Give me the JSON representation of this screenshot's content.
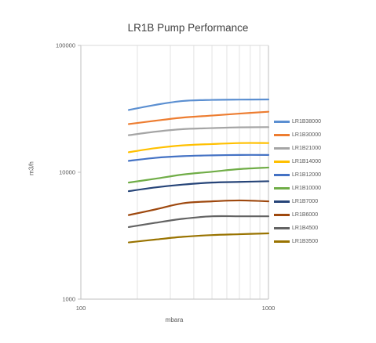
{
  "chart_data": {
    "type": "line",
    "title": "LR1B Pump Performance",
    "xlabel": "mbara",
    "ylabel": "m3/h",
    "x_scale": "log",
    "y_scale": "log",
    "xlim": [
      100,
      1000
    ],
    "ylim": [
      1000,
      100000
    ],
    "x_ticks": [
      "100",
      "1000"
    ],
    "y_ticks": [
      "1000",
      "10000",
      "100000"
    ],
    "grid": "vertical-minor",
    "legend_position": "right",
    "x": [
      180,
      250,
      350,
      500,
      700,
      1000
    ],
    "series": [
      {
        "name": "LR1B38000",
        "color": "#5b8fd1",
        "values": [
          31000,
          34000,
          36500,
          37200,
          37400,
          37500
        ]
      },
      {
        "name": "LR1B30000",
        "color": "#ed7d31",
        "values": [
          24000,
          25500,
          27000,
          28000,
          29000,
          30000
        ]
      },
      {
        "name": "LR1B21000",
        "color": "#a5a5a5",
        "values": [
          19600,
          20900,
          21900,
          22300,
          22600,
          22700
        ]
      },
      {
        "name": "LR1B14000",
        "color": "#ffc000",
        "values": [
          14400,
          15500,
          16300,
          16700,
          17000,
          17000
        ]
      },
      {
        "name": "LR1B12000",
        "color": "#4472c4",
        "values": [
          12300,
          13000,
          13400,
          13600,
          13700,
          13700
        ]
      },
      {
        "name": "LR1B10000",
        "color": "#70ad47",
        "values": [
          8300,
          8900,
          9600,
          10100,
          10600,
          10900
        ]
      },
      {
        "name": "LR1B7000",
        "color": "#264478",
        "values": [
          7100,
          7600,
          8000,
          8300,
          8400,
          8500
        ]
      },
      {
        "name": "LR1B6000",
        "color": "#9e480e",
        "values": [
          4600,
          5100,
          5700,
          5900,
          6000,
          5900
        ]
      },
      {
        "name": "LR1B4500",
        "color": "#636363",
        "values": [
          3700,
          4000,
          4300,
          4500,
          4500,
          4500
        ]
      },
      {
        "name": "LR1B3500",
        "color": "#997300",
        "values": [
          2800,
          2950,
          3100,
          3200,
          3250,
          3300
        ]
      }
    ]
  }
}
